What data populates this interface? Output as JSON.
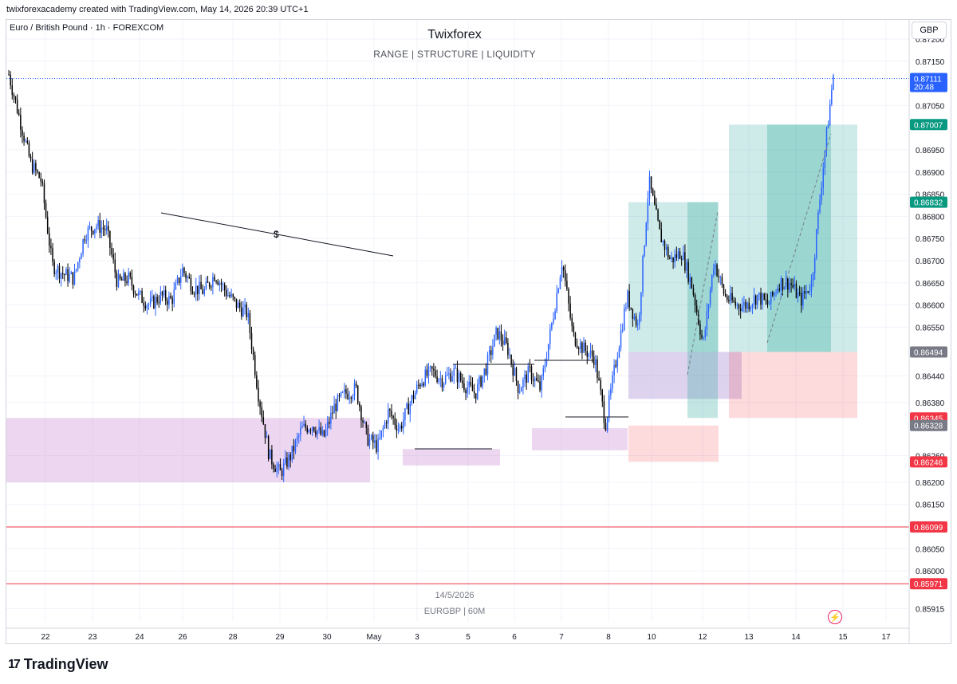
{
  "header": {
    "credit": "twixforexacademy created with TradingView.com, May 14, 2026 20:39 UTC+1"
  },
  "symbol_label": "Euro / British Pound · 1h · FOREXCOM",
  "title": "Twixforex",
  "subtitle": "RANGE  |  STRUCTURE  |  LIQUIDITY",
  "currency_button": "GBP",
  "watermark": {
    "date": "14/5/2026",
    "pair": "EURGBP | 60M"
  },
  "brand": "TradingView",
  "colors": {
    "up": "#2962ff",
    "down": "#000000",
    "green_zone": "#26a69a",
    "red_zone": "#f23645",
    "purple_zone": "#ce93d8",
    "price_line": "#2962ff"
  },
  "chart_data": {
    "type": "candlestick",
    "symbol": "EURGBP",
    "timeframe": "1h",
    "y_range": [
      0.85885,
      0.87245
    ],
    "y_ticks": [
      "0.87200",
      "0.87150",
      "0.87050",
      "0.86950",
      "0.86900",
      "0.86850",
      "0.86800",
      "0.86750",
      "0.86700",
      "0.86650",
      "0.86600",
      "0.86550",
      "0.86440",
      "0.86380",
      "0.86260",
      "0.86200",
      "0.86150",
      "0.86050",
      "0.86000",
      "0.85915"
    ],
    "x_ticks": [
      "22",
      "23",
      "24",
      "26",
      "28",
      "29",
      "30",
      "May",
      "3",
      "5",
      "6",
      "7",
      "8",
      "10",
      "12",
      "13",
      "14",
      "15",
      "17"
    ],
    "price_tags": [
      {
        "value": "0.87111",
        "sub": "20:48",
        "color": "#2962ff"
      },
      {
        "value": "0.87007",
        "color": "#089981"
      },
      {
        "value": "0.86832",
        "color": "#089981"
      },
      {
        "value": "0.86494",
        "color": "#787b86"
      },
      {
        "value": "0.86345",
        "color": "#f23645"
      },
      {
        "value": "0.86328",
        "color": "#787b86"
      },
      {
        "value": "0.86246",
        "color": "#f23645"
      },
      {
        "value": "0.86099",
        "color": "#f23645"
      },
      {
        "value": "0.85971",
        "color": "#f23645"
      }
    ],
    "horizontal_lines": [
      {
        "price": 0.86099,
        "color": "#f23645"
      },
      {
        "price": 0.85971,
        "color": "#f23645"
      }
    ],
    "current_price": 0.87111,
    "trendline_label": "$",
    "close_path": [
      [
        0,
        0.8712
      ],
      [
        1,
        0.8702
      ],
      [
        2,
        0.8692
      ],
      [
        3,
        0.8688
      ],
      [
        4,
        0.8669
      ],
      [
        5,
        0.8667
      ],
      [
        6,
        0.8666
      ],
      [
        7,
        0.8676
      ],
      [
        8,
        0.8678
      ],
      [
        9,
        0.8677
      ],
      [
        10,
        0.8665
      ],
      [
        11,
        0.8666
      ],
      [
        12,
        0.8662
      ],
      [
        13,
        0.866
      ],
      [
        14,
        0.8662
      ],
      [
        15,
        0.8661
      ],
      [
        16,
        0.8668
      ],
      [
        17,
        0.8664
      ],
      [
        18,
        0.8663
      ],
      [
        19,
        0.8667
      ],
      [
        20,
        0.8663
      ],
      [
        21,
        0.866
      ],
      [
        22,
        0.8658
      ],
      [
        23,
        0.864
      ],
      [
        24,
        0.8626
      ],
      [
        25,
        0.8622
      ],
      [
        26,
        0.8626
      ],
      [
        27,
        0.8632
      ],
      [
        28,
        0.8633
      ],
      [
        29,
        0.863
      ],
      [
        30,
        0.8637
      ],
      [
        31,
        0.864
      ],
      [
        32,
        0.8641
      ],
      [
        33,
        0.863
      ],
      [
        34,
        0.8628
      ],
      [
        35,
        0.8636
      ],
      [
        36,
        0.8632
      ],
      [
        37,
        0.8638
      ],
      [
        38,
        0.8643
      ],
      [
        39,
        0.8645
      ],
      [
        40,
        0.8643
      ],
      [
        41,
        0.8645
      ],
      [
        42,
        0.8642
      ],
      [
        43,
        0.864
      ],
      [
        44,
        0.8646
      ],
      [
        45,
        0.8654
      ],
      [
        46,
        0.865
      ],
      [
        47,
        0.8641
      ],
      [
        48,
        0.8645
      ],
      [
        49,
        0.8641
      ],
      [
        50,
        0.8655
      ],
      [
        51,
        0.867
      ],
      [
        52,
        0.8653
      ],
      [
        53,
        0.865
      ],
      [
        54,
        0.8648
      ],
      [
        55,
        0.8633
      ],
      [
        56,
        0.8648
      ],
      [
        57,
        0.8662
      ],
      [
        58,
        0.8655
      ],
      [
        59,
        0.8688
      ],
      [
        60,
        0.8676
      ],
      [
        61,
        0.867
      ],
      [
        62,
        0.8672
      ],
      [
        63,
        0.8664
      ],
      [
        64,
        0.8651
      ],
      [
        65,
        0.867
      ],
      [
        66,
        0.8662
      ],
      [
        67,
        0.866
      ],
      [
        68,
        0.866
      ],
      [
        69,
        0.8662
      ],
      [
        70,
        0.866
      ],
      [
        71,
        0.8665
      ],
      [
        72,
        0.8665
      ],
      [
        73,
        0.8661
      ],
      [
        74,
        0.8665
      ],
      [
        75,
        0.869
      ],
      [
        76,
        0.8712
      ]
    ]
  }
}
